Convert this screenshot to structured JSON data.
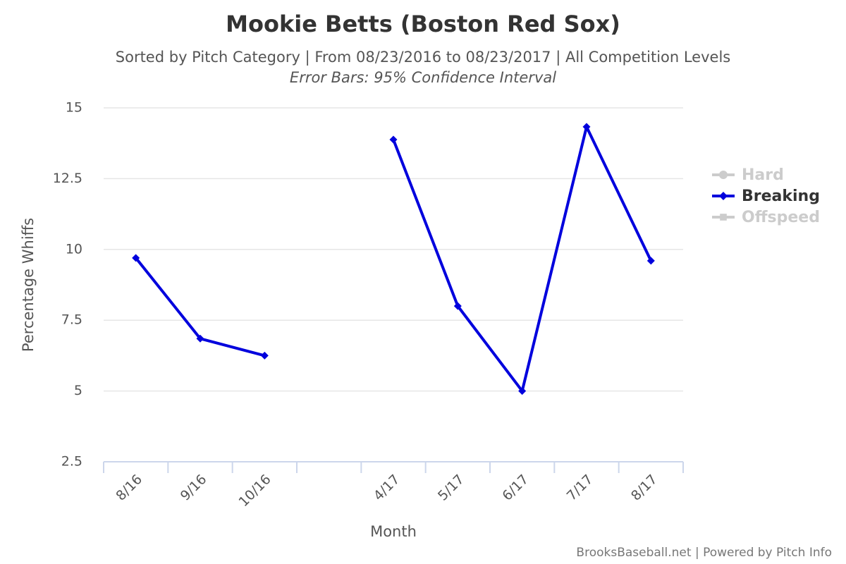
{
  "chart_data": {
    "type": "line",
    "title": "Mookie Betts (Boston Red Sox)",
    "subtitle": "Sorted by Pitch Category | From 08/23/2016 to 08/23/2017 | All Competition Levels",
    "annotation": "Error Bars: 95% Confidence Interval",
    "x_label": "Month",
    "y_label": "Percentage Whiffs",
    "credits": "BrooksBaseball.net | Powered by Pitch Info",
    "categories": [
      "8/16",
      "9/16",
      "10/16",
      null,
      "4/17",
      "5/17",
      "6/17",
      "7/17",
      "8/17"
    ],
    "series": [
      {
        "name": "Hard",
        "color": "#cccccc",
        "marker": "circle",
        "visible": false,
        "values": [
          null,
          null,
          null,
          null,
          null,
          null,
          null,
          null,
          null
        ]
      },
      {
        "name": "Breaking",
        "color": "#0000dd",
        "marker": "diamond",
        "visible": true,
        "values": [
          9.7,
          6.85,
          6.25,
          null,
          13.88,
          8.0,
          5.0,
          14.33,
          9.6
        ]
      },
      {
        "name": "Offspeed",
        "color": "#cccccc",
        "marker": "square",
        "visible": false,
        "values": [
          null,
          null,
          null,
          null,
          null,
          null,
          null,
          null,
          null
        ]
      }
    ],
    "ylim": [
      2.5,
      15
    ],
    "yticks": [
      2.5,
      5,
      7.5,
      10,
      12.5,
      15
    ],
    "grid": true,
    "legend": "right"
  }
}
